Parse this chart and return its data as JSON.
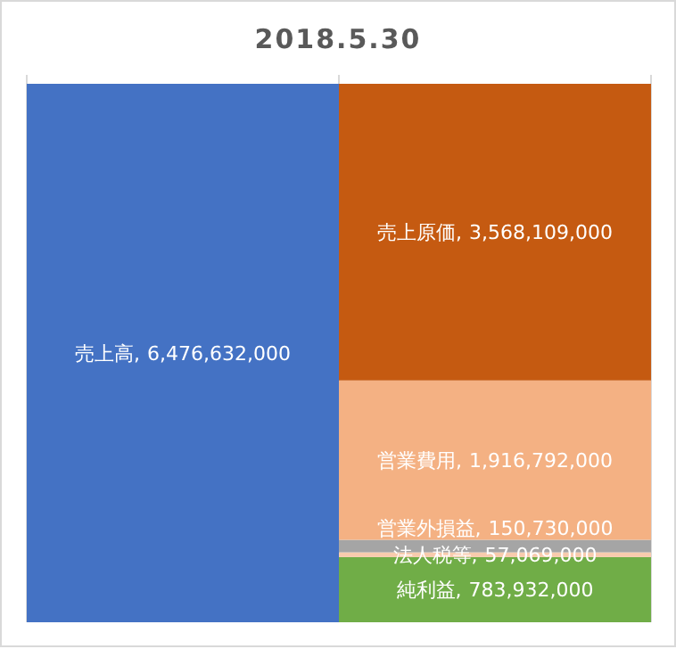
{
  "chart_data": {
    "type": "bar",
    "title": "2018.5.30",
    "stacked": true,
    "grid": "x",
    "categories": [
      null,
      null
    ],
    "series": [
      {
        "name": "売上高,",
        "color": "#4472c4",
        "values": [
          6476632000,
          null
        ],
        "value_labels": [
          "6,476,632,000",
          null
        ]
      },
      {
        "name": "純利益,",
        "color": "#70ad47",
        "values": [
          null,
          783932000
        ],
        "value_labels": [
          null,
          "783,932,000"
        ]
      },
      {
        "name": "法人税等,",
        "color": "#f8cbad",
        "values": [
          null,
          57069000
        ],
        "value_labels": [
          null,
          "57,069,000"
        ]
      },
      {
        "name": "営業外損益,",
        "color": "#a5a5a5",
        "values": [
          null,
          150730000
        ],
        "value_labels": [
          null,
          "150,730,000"
        ]
      },
      {
        "name": "営業費用,",
        "color": "#f4b183",
        "values": [
          null,
          1916792000
        ],
        "value_labels": [
          null,
          "1,916,792,000"
        ]
      },
      {
        "name": "売上原価,",
        "color": "#c55a11",
        "values": [
          null,
          3568109000
        ],
        "value_labels": [
          null,
          "3,568,109,000"
        ]
      }
    ]
  }
}
